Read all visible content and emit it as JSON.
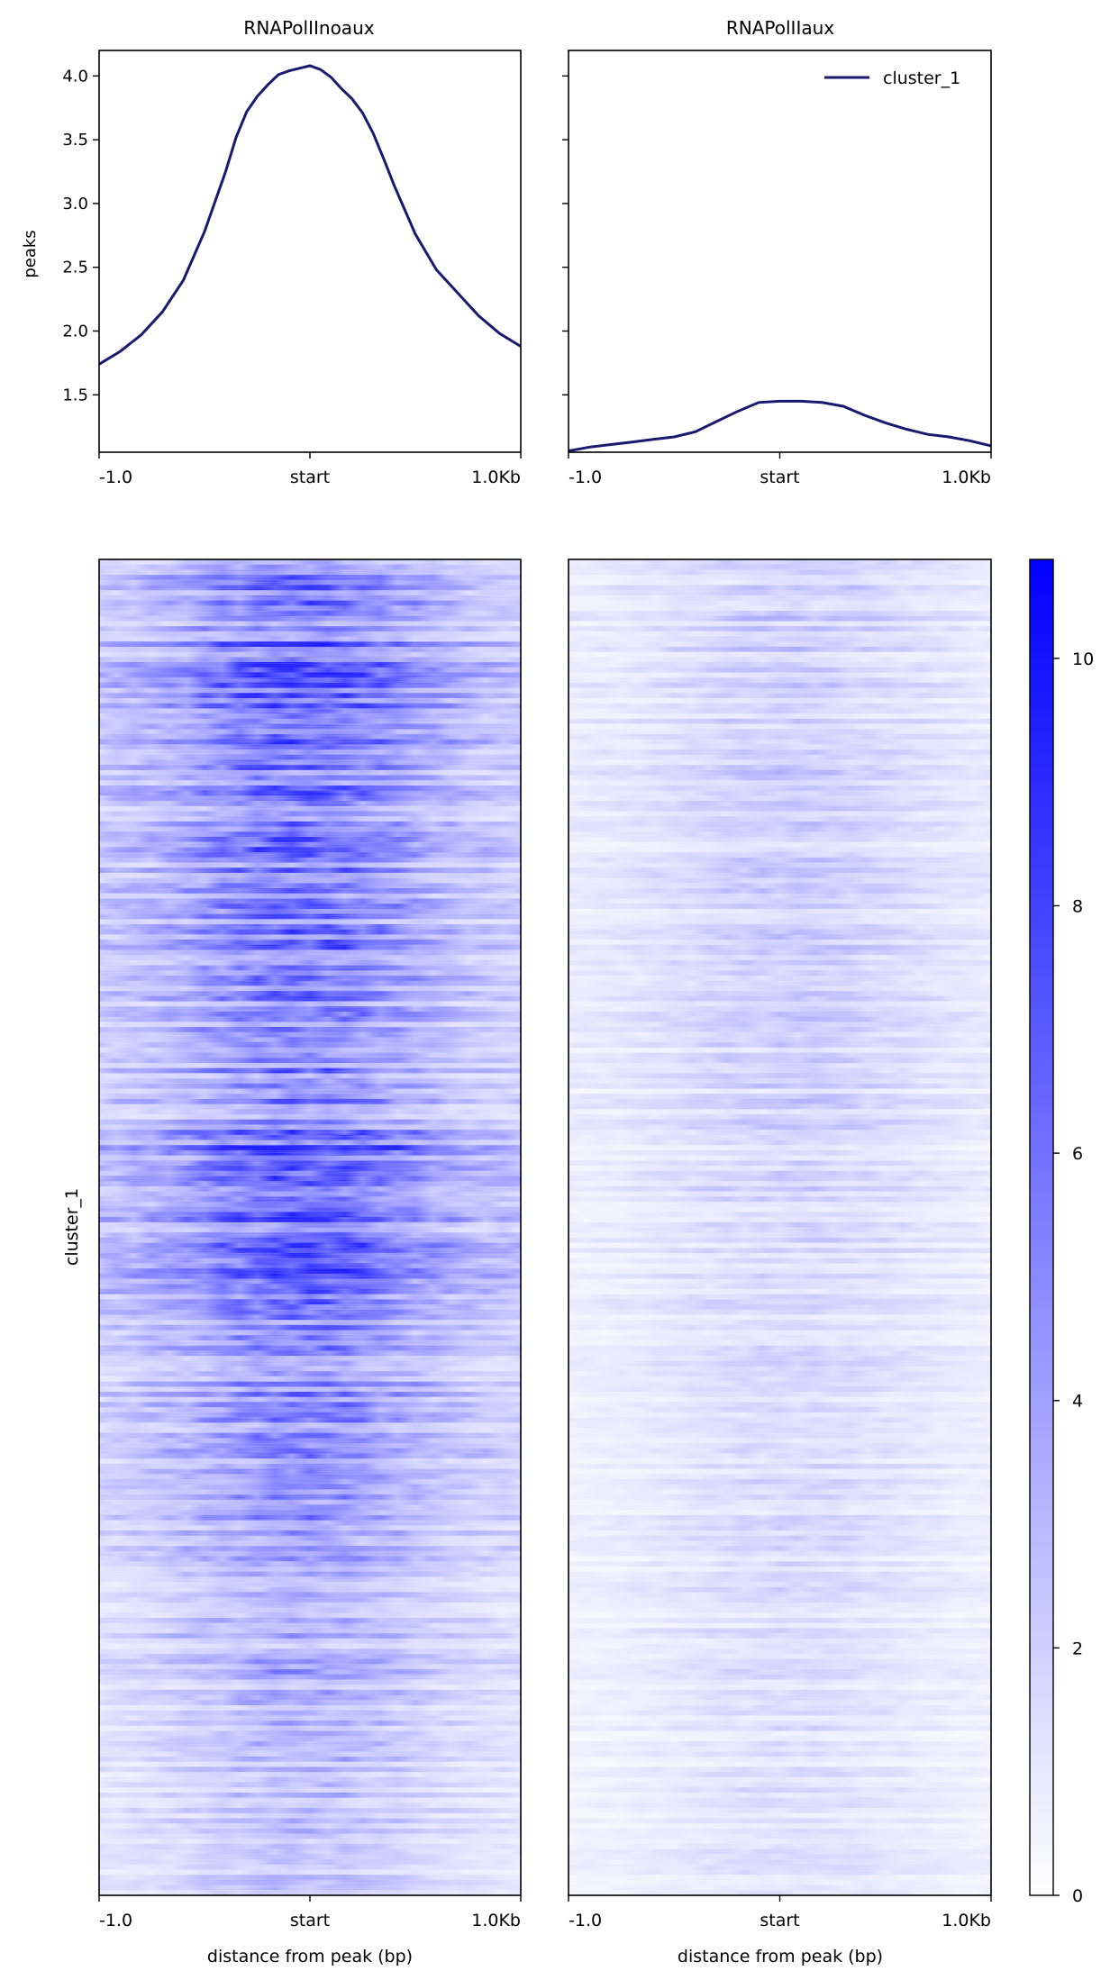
{
  "chart_data": [
    {
      "type": "line",
      "title": "RNAPolIInoaux",
      "ylabel": "peaks",
      "xlabel": "",
      "ylim": [
        1.05,
        4.2
      ],
      "yticks": [
        "1.5",
        "2.0",
        "2.5",
        "3.0",
        "3.5",
        "4.0"
      ],
      "ytick_values": [
        1.5,
        2.0,
        2.5,
        3.0,
        3.5,
        4.0
      ],
      "xticks": [
        "-1.0",
        "start",
        "1.0Kb"
      ],
      "grid": false,
      "series": [
        {
          "color": "#191970",
          "x": [
            -1000,
            -900,
            -800,
            -700,
            -600,
            -500,
            -400,
            -350,
            -300,
            -250,
            -200,
            -150,
            -100,
            -50,
            0,
            50,
            100,
            150,
            200,
            250,
            300,
            350,
            400,
            450,
            500,
            600,
            700,
            800,
            900,
            1000
          ],
          "y": [
            1.74,
            1.84,
            1.97,
            2.15,
            2.4,
            2.78,
            3.25,
            3.52,
            3.72,
            3.84,
            3.93,
            4.01,
            4.04,
            4.06,
            4.08,
            4.05,
            3.99,
            3.9,
            3.82,
            3.71,
            3.55,
            3.35,
            3.14,
            2.95,
            2.76,
            2.48,
            2.3,
            2.12,
            1.98,
            1.88
          ]
        }
      ]
    },
    {
      "type": "line",
      "title": "RNAPolIIaux",
      "ylabel": "",
      "xlabel": "",
      "ylim": [
        1.05,
        4.2
      ],
      "xticks": [
        "-1.0",
        "start",
        "1.0Kb"
      ],
      "grid": false,
      "legend": {
        "position": "top-right",
        "entries": [
          "cluster_1"
        ]
      },
      "series": [
        {
          "name": "cluster_1",
          "color": "#191970",
          "x": [
            -1000,
            -900,
            -800,
            -700,
            -600,
            -500,
            -400,
            -300,
            -200,
            -100,
            0,
            100,
            200,
            300,
            400,
            500,
            600,
            700,
            800,
            900,
            1000
          ],
          "y": [
            1.06,
            1.09,
            1.11,
            1.13,
            1.15,
            1.17,
            1.21,
            1.29,
            1.37,
            1.44,
            1.45,
            1.45,
            1.44,
            1.41,
            1.34,
            1.28,
            1.23,
            1.19,
            1.17,
            1.14,
            1.1
          ]
        }
      ]
    },
    {
      "type": "heatmap",
      "xlabel": "distance from peak (bp)",
      "ylabel": "cluster_1",
      "xticks": [
        "-1.0",
        "start",
        "1.0Kb"
      ],
      "intensity": "high, peaking near start",
      "colors": [
        "#ffffff",
        "#0000ff"
      ]
    },
    {
      "type": "heatmap",
      "xlabel": "distance from peak (bp)",
      "ylabel": "",
      "xticks": [
        "-1.0",
        "start",
        "1.0Kb"
      ],
      "intensity": "low, faint enrichment near start",
      "colors": [
        "#ffffff",
        "#0000ff"
      ]
    }
  ],
  "colorbar": {
    "vmin": 0,
    "vmax": 10.8,
    "ticks": [
      "0",
      "2",
      "4",
      "6",
      "8",
      "10"
    ],
    "tick_values": [
      0,
      2,
      4,
      6,
      8,
      10
    ],
    "low_color": "#ffffff",
    "high_color": "#0000ff"
  }
}
